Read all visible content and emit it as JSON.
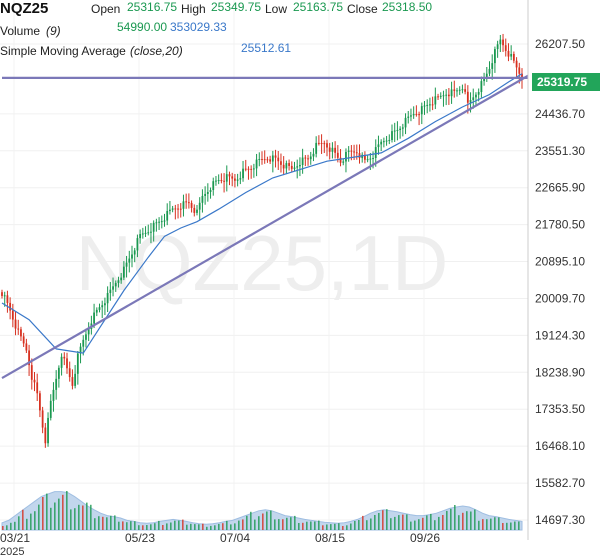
{
  "symbol": "NQZ25",
  "header": {
    "open_label": "Open",
    "open_value": "25316.75",
    "high_label": "High",
    "high_value": "25349.75",
    "low_label": "Low",
    "low_value": "25163.75",
    "close_label": "Close",
    "close_value": "25318.50"
  },
  "volume_legend": {
    "label": "Volume",
    "param": "(9)",
    "value1": "54990.00",
    "value2": "353029.33"
  },
  "sma_legend": {
    "label": "Simple Moving Average",
    "param": "(close,20)",
    "value": "25512.61"
  },
  "watermark": "NQZ25,1D",
  "last_price_tag": "25319.75",
  "colors": {
    "up": "#1a9850",
    "down": "#d7301f",
    "sma": "#3a78c9",
    "trendline": "#7b78b8",
    "volume_area": "#b8d0ea",
    "tag": "#22a55a"
  },
  "chart_data": {
    "type": "candlestick",
    "y_ticks": [
      "26207.50",
      "25319.75",
      "24436.70",
      "23551.30",
      "22665.90",
      "21780.50",
      "20895.10",
      "20009.70",
      "19124.30",
      "18238.90",
      "17353.50",
      "16468.10",
      "15582.70",
      "14697.30"
    ],
    "x_ticks": [
      {
        "label": "03/21",
        "sub": "2025"
      },
      {
        "label": "05/23",
        "sub": ""
      },
      {
        "label": "07/04",
        "sub": ""
      },
      {
        "label": "08/15",
        "sub": ""
      },
      {
        "label": "09/26",
        "sub": ""
      }
    ],
    "price_series": [
      {
        "name": "NQZ25 1D",
        "points": [
          [
            0,
            20160
          ],
          [
            3,
            19720
          ],
          [
            6,
            19180
          ],
          [
            9,
            18780
          ],
          [
            11,
            18150
          ],
          [
            13,
            17700
          ],
          [
            15,
            16950
          ],
          [
            16,
            16610
          ],
          [
            18,
            17500
          ],
          [
            20,
            18100
          ],
          [
            22,
            18700
          ],
          [
            24,
            18300
          ],
          [
            26,
            17950
          ],
          [
            28,
            18600
          ],
          [
            30,
            19000
          ],
          [
            33,
            19500
          ],
          [
            36,
            19800
          ],
          [
            39,
            20050
          ],
          [
            42,
            20400
          ],
          [
            45,
            20700
          ],
          [
            48,
            21100
          ],
          [
            51,
            21500
          ],
          [
            54,
            21650
          ],
          [
            57,
            21800
          ],
          [
            60,
            21950
          ],
          [
            63,
            22150
          ],
          [
            66,
            22250
          ],
          [
            69,
            22300
          ],
          [
            72,
            22050
          ],
          [
            74,
            22450
          ],
          [
            77,
            22700
          ],
          [
            80,
            22850
          ],
          [
            83,
            22900
          ],
          [
            86,
            22850
          ],
          [
            89,
            23050
          ],
          [
            92,
            23150
          ],
          [
            95,
            23300
          ],
          [
            98,
            23400
          ],
          [
            101,
            23350
          ],
          [
            104,
            23200
          ],
          [
            107,
            23100
          ],
          [
            110,
            23300
          ],
          [
            113,
            23350
          ],
          [
            116,
            23650
          ],
          [
            119,
            23750
          ],
          [
            122,
            23550
          ],
          [
            125,
            23300
          ],
          [
            128,
            23500
          ],
          [
            131,
            23550
          ],
          [
            134,
            23300
          ],
          [
            137,
            23450
          ],
          [
            140,
            23750
          ],
          [
            143,
            23900
          ],
          [
            146,
            24050
          ],
          [
            149,
            24250
          ],
          [
            152,
            24450
          ],
          [
            155,
            24550
          ],
          [
            158,
            24700
          ],
          [
            161,
            24800
          ],
          [
            164,
            24950
          ],
          [
            167,
            24950
          ],
          [
            170,
            25100
          ],
          [
            172,
            24650
          ],
          [
            174,
            24850
          ],
          [
            176,
            25050
          ],
          [
            178,
            25250
          ],
          [
            180,
            25550
          ],
          [
            182,
            25900
          ],
          [
            184,
            26200
          ],
          [
            186,
            26000
          ],
          [
            188,
            25800
          ],
          [
            190,
            25550
          ],
          [
            192,
            25319
          ]
        ]
      },
      {
        "name": "SMA",
        "points": [
          [
            0,
            19900
          ],
          [
            10,
            19500
          ],
          [
            20,
            18800
          ],
          [
            30,
            18700
          ],
          [
            36,
            19300
          ],
          [
            45,
            20200
          ],
          [
            54,
            21000
          ],
          [
            60,
            21500
          ],
          [
            66,
            21700
          ],
          [
            72,
            21850
          ],
          [
            80,
            22150
          ],
          [
            90,
            22550
          ],
          [
            100,
            22900
          ],
          [
            110,
            23100
          ],
          [
            120,
            23300
          ],
          [
            130,
            23400
          ],
          [
            140,
            23500
          ],
          [
            150,
            23850
          ],
          [
            160,
            24250
          ],
          [
            170,
            24600
          ],
          [
            180,
            24900
          ],
          [
            187,
            25200
          ],
          [
            192,
            25400
          ]
        ]
      }
    ],
    "trendlines": [
      {
        "name": "rising trendline",
        "from": [
          0,
          18100
        ],
        "to": [
          192,
          25350
        ]
      },
      {
        "name": "horizontal line",
        "from": [
          0,
          25300
        ],
        "to": [
          192,
          25300
        ]
      }
    ],
    "volume": [
      0.15,
      0.2,
      0.3,
      0.4,
      0.5,
      0.6,
      0.7,
      0.75,
      0.8,
      0.8,
      0.78,
      0.7,
      0.6,
      0.5,
      0.42,
      0.35,
      0.3,
      0.28,
      0.25,
      0.2,
      0.18,
      0.15,
      0.14,
      0.15,
      0.18,
      0.2,
      0.22,
      0.2,
      0.18,
      0.15,
      0.13,
      0.12,
      0.13,
      0.15,
      0.18,
      0.2,
      0.25,
      0.3,
      0.35,
      0.4,
      0.42,
      0.4,
      0.35,
      0.3,
      0.28,
      0.25,
      0.22,
      0.2,
      0.18,
      0.16,
      0.15,
      0.14,
      0.15,
      0.18,
      0.22,
      0.28,
      0.35,
      0.4,
      0.42,
      0.4,
      0.38,
      0.35,
      0.32,
      0.3,
      0.3,
      0.32,
      0.35,
      0.4,
      0.45,
      0.48,
      0.5,
      0.48,
      0.42,
      0.35,
      0.3,
      0.28,
      0.25,
      0.22,
      0.2,
      0.18
    ]
  }
}
